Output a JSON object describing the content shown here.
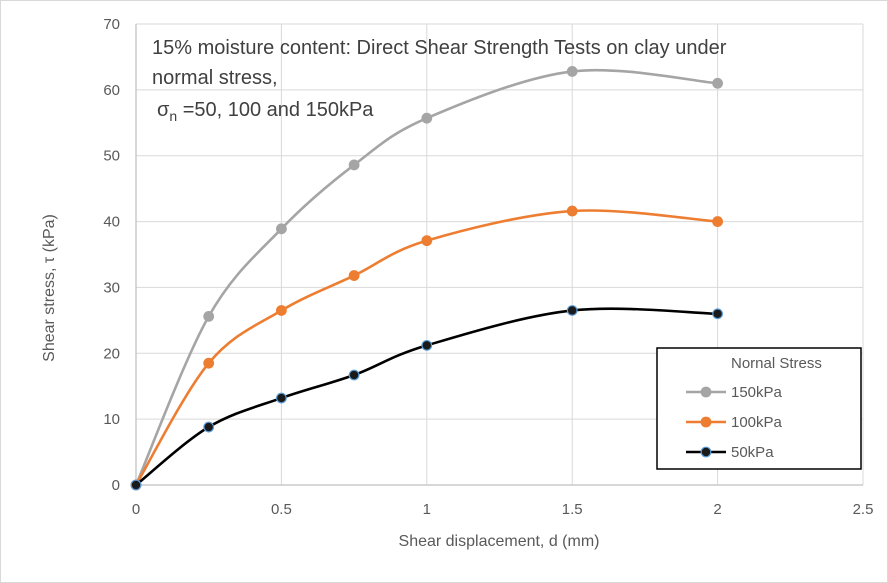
{
  "chart_data": {
    "type": "line",
    "title": {
      "line1": "15% moisture content: Direct Shear Strength Tests on clay under",
      "line2": "normal stress,",
      "line3_symbol": "σ",
      "line3_subscript": "n",
      "line3_rest": " =50, 100 and 150kPa"
    },
    "xlabel": "Shear displacement, d (mm)",
    "ylabel": "Shear stress, τ (kPa)",
    "xlim": [
      0,
      2.5
    ],
    "ylim": [
      0,
      70
    ],
    "xticks": [
      0,
      0.5,
      1,
      1.5,
      2,
      2.5
    ],
    "xtick_labels": [
      "0",
      "0.5",
      "1",
      "1.5",
      "2",
      "2.5"
    ],
    "yticks": [
      0,
      10,
      20,
      30,
      40,
      50,
      60,
      70
    ],
    "ytick_labels": [
      "0",
      "10",
      "20",
      "30",
      "40",
      "50",
      "60",
      "70"
    ],
    "grid": true,
    "smooth_lines": true,
    "legend": {
      "title": "Nornal Stress",
      "position": "bottom-right, inside plot area"
    },
    "series": [
      {
        "name": "150kPa",
        "color": "#a5a5a5",
        "marker_fill": "#a5a5a5",
        "marker_stroke": "#a5a5a5",
        "x": [
          0,
          0.25,
          0.5,
          0.75,
          1,
          1.5,
          2
        ],
        "y": [
          0,
          25.6,
          38.9,
          48.6,
          55.7,
          62.8,
          61.0
        ]
      },
      {
        "name": "100kPa",
        "color": "#ed7d31",
        "marker_fill": "#ed7d31",
        "marker_stroke": "#ed7d31",
        "x": [
          0,
          0.25,
          0.5,
          0.75,
          1,
          1.5,
          2
        ],
        "y": [
          0,
          18.5,
          26.5,
          31.8,
          37.1,
          41.6,
          40.0
        ]
      },
      {
        "name": "50kPa",
        "color": "#000000",
        "marker_fill": "#1a1a1a",
        "marker_stroke": "#5b9bd5",
        "x": [
          0,
          0.25,
          0.5,
          0.75,
          1,
          1.5,
          2
        ],
        "y": [
          0,
          8.8,
          13.2,
          16.7,
          21.2,
          26.5,
          26.0
        ]
      }
    ]
  }
}
